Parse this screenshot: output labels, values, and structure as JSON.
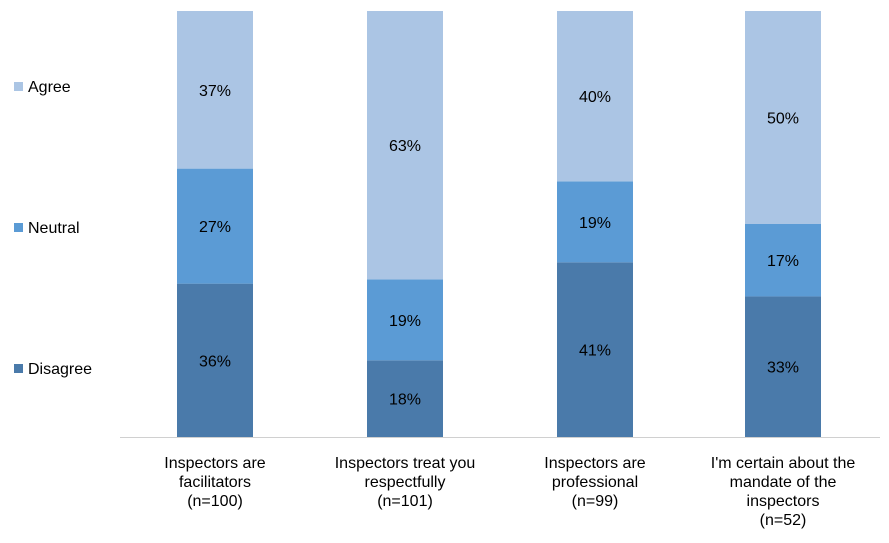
{
  "chart_data": {
    "type": "bar",
    "stacked": true,
    "percent_stacked": true,
    "categories": [
      [
        "Inspectors are",
        "facilitators",
        "(n=100)"
      ],
      [
        "Inspectors treat you",
        "respectfully",
        "(n=101)"
      ],
      [
        "Inspectors are",
        "professional",
        "(n=99)"
      ],
      [
        "I'm certain about the",
        "mandate of the",
        "inspectors",
        "(n=52)"
      ]
    ],
    "series": [
      {
        "name": "Disagree",
        "values": [
          36,
          18,
          41,
          33
        ],
        "labels": [
          "36%",
          "18%",
          "41%",
          "33%"
        ],
        "color": "#4a7aaa"
      },
      {
        "name": "Neutral",
        "values": [
          27,
          19,
          19,
          17
        ],
        "labels": [
          "27%",
          "19%",
          "19%",
          "17%"
        ],
        "color": "#5b9bd5"
      },
      {
        "name": "Agree",
        "values": [
          37,
          63,
          40,
          50
        ],
        "labels": [
          "37%",
          "63%",
          "40%",
          "50%"
        ],
        "color": "#abc5e4"
      }
    ],
    "legend_position": "left",
    "ylim": [
      0,
      100
    ],
    "grid": false
  }
}
